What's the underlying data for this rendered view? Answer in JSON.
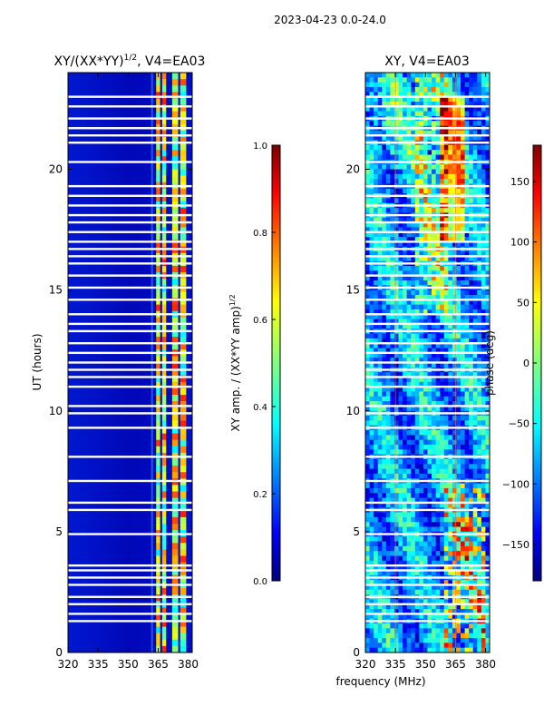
{
  "suptitle": "2023-04-23 0.0-24.0",
  "xlabel_common": "frequency (MHz)",
  "chart_data": [
    {
      "type": "heatmap",
      "title_main": "XY/(XX*YY)",
      "title_exp": "1/2",
      "title_suffix": ", V4=EA03",
      "ylabel": "UT (hours)",
      "xlim": [
        320,
        382
      ],
      "ylim": [
        0,
        24
      ],
      "xticks": [
        320,
        335,
        350,
        365,
        380
      ],
      "yticks": [
        0,
        5,
        10,
        15,
        20
      ],
      "colorbar": {
        "label_main": "XY amp. / (XX*YY amp)",
        "label_exp": "1/2",
        "range": [
          0.0,
          1.0
        ],
        "ticks": [
          "0.0",
          "0.2",
          "0.4",
          "0.6",
          "0.8",
          "1.0"
        ],
        "colormap": "jet"
      },
      "flagged_hours": [
        1.3,
        1.6,
        2.0,
        2.3,
        2.8,
        3.1,
        3.4,
        3.6,
        4.9,
        5.9,
        6.2,
        7.1,
        8.1,
        9.3,
        9.9,
        10.2,
        11.0,
        11.4,
        11.7,
        12.0,
        12.4,
        12.8,
        13.3,
        13.6,
        14.0,
        14.6,
        15.1,
        15.6,
        16.1,
        16.4,
        16.7,
        17.0,
        17.4,
        17.8,
        18.1,
        18.5,
        18.9,
        19.3,
        20.3,
        21.1,
        21.4,
        21.7,
        22.1,
        22.6,
        23.0
      ],
      "bright_bands_mhz": [
        [
          364,
          366
        ],
        [
          367,
          369
        ],
        [
          372,
          375
        ],
        [
          376,
          379
        ]
      ]
    },
    {
      "type": "heatmap",
      "title": "XY, V4=EA03",
      "xlim": [
        320,
        382
      ],
      "ylim": [
        0,
        24
      ],
      "xticks": [
        320,
        335,
        350,
        365,
        380
      ],
      "yticks": [
        0,
        5,
        10,
        15,
        20
      ],
      "colorbar": {
        "label": "phase (deg)",
        "range": [
          -180,
          180
        ],
        "ticks": [
          "-150",
          "-100",
          "-50",
          "0",
          "50",
          "100",
          "150"
        ],
        "tick_values": [
          -150,
          -100,
          -50,
          0,
          50,
          100,
          150
        ],
        "colormap": "jet"
      },
      "flagged_hours": [
        1.3,
        1.6,
        2.0,
        2.3,
        2.8,
        3.1,
        3.4,
        3.6,
        4.9,
        5.9,
        6.2,
        7.1,
        8.1,
        9.3,
        9.9,
        10.2,
        11.0,
        11.4,
        11.7,
        12.0,
        12.4,
        12.8,
        13.3,
        13.6,
        14.0,
        14.6,
        15.1,
        15.6,
        16.1,
        16.4,
        16.7,
        17.0,
        17.4,
        17.8,
        18.1,
        18.5,
        18.9,
        19.3,
        20.3,
        21.1,
        21.4,
        21.7,
        22.1,
        22.6,
        23.0
      ]
    }
  ]
}
